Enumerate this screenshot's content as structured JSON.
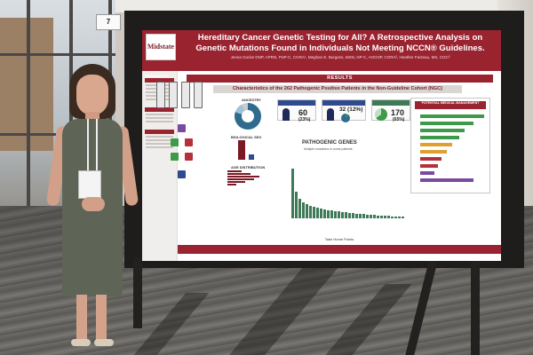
{
  "booth": {
    "number_tag": "7"
  },
  "poster": {
    "logo_text": "Midstate",
    "title": "Hereditary Cancer Genetic Testing for All? A Retrospective Analysis on Genetic Mutations Found in Individuals Not Meeting NCCN® Guidelines.",
    "authors": "Jenna Gocke DNP, APRN, FNP-C, CGRA¹, Meghan E. Burgess, MSN, NP-C, AOCNP, CGRA², Heather Facteau, MS, CGC³",
    "left_section": "INTRODUCTION",
    "results_label": "RESULTS",
    "subheader": "Characteristics of the 262 Pathogenic Positive Patients in the Non-Guideline Cohort (NGC)",
    "ancestry_label": "ANCESTRY",
    "biological_sex_label": "BIOLOGICAL SEX",
    "age_distribution_label": "AGE DISTRIBUTION",
    "stat_1_value": "60",
    "stat_1_pct": "(23%)",
    "stat_2_value": "32 (12%)",
    "stat_3_value": "170",
    "stat_3_pct": "(65%)",
    "genes_title": "PATHOGENIC GENES",
    "genes_subtitle": "Multiple mutations in some patients",
    "right_panel_title": "POTENTIAL MEDICAL MANAGEMENT",
    "footer_label": "Take Home Points"
  },
  "colors": {
    "poster_maroon": "#9a2330",
    "bar_green": "#3e7a58",
    "dress_olive": "#5e6456"
  }
}
